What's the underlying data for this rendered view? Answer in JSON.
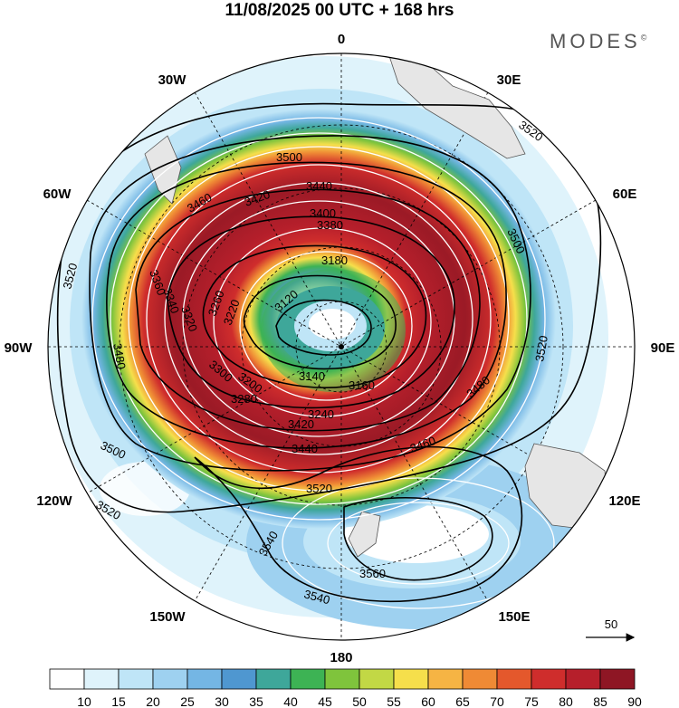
{
  "header": {
    "title": "11/08/2025  00 UTC  + 168 hrs",
    "brand": "MODES",
    "brand_mark": "©"
  },
  "map": {
    "projection": "south-polar-stereographic",
    "longitude_labels": [
      "0",
      "30E",
      "60E",
      "90E",
      "120E",
      "150E",
      "180",
      "150W",
      "120W",
      "90W",
      "60W",
      "30W"
    ],
    "contour_labels": [
      "3520",
      "3520",
      "3520",
      "3520",
      "3520",
      "3500",
      "3500",
      "3500",
      "3480",
      "3480",
      "3460",
      "3460",
      "3440",
      "3440",
      "3420",
      "3420",
      "3400",
      "3380",
      "3360",
      "3340",
      "3320",
      "3300",
      "3280",
      "3260",
      "3240",
      "3220",
      "3200",
      "3180",
      "3160",
      "3140",
      "3120",
      "3540",
      "3540",
      "3560"
    ],
    "vector_reference": {
      "value": "50"
    }
  },
  "colorbar": {
    "ticks": [
      "10",
      "15",
      "20",
      "25",
      "30",
      "35",
      "40",
      "45",
      "50",
      "55",
      "60",
      "65",
      "70",
      "75",
      "80",
      "85",
      "90"
    ],
    "colors": [
      "#ffffff",
      "#dff3fb",
      "#bfe5f7",
      "#9ed1f0",
      "#74b6e4",
      "#4f97d0",
      "#3ea79a",
      "#3db354",
      "#7fc43c",
      "#c2d845",
      "#f6df4b",
      "#f6b444",
      "#ef8a35",
      "#e4582c",
      "#cf2d2c",
      "#b61f2b",
      "#8e1624"
    ]
  }
}
